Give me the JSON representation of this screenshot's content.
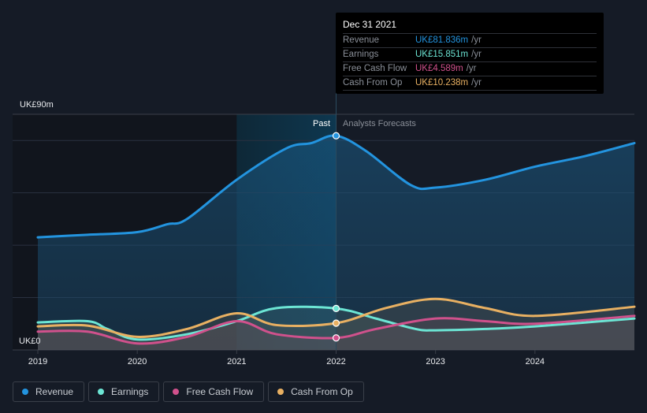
{
  "tooltip": {
    "date": "Dec 31 2021",
    "rows": [
      {
        "label": "Revenue",
        "value": "UK£81.836m",
        "unit": "/yr",
        "color": "#2394df"
      },
      {
        "label": "Earnings",
        "value": "UK£15.851m",
        "unit": "/yr",
        "color": "#6ce5d4"
      },
      {
        "label": "Free Cash Flow",
        "value": "UK£4.589m",
        "unit": "/yr",
        "color": "#d0518c"
      },
      {
        "label": "Cash From Op",
        "value": "UK£10.238m",
        "unit": "/yr",
        "color": "#e8b062"
      }
    ]
  },
  "legend": [
    {
      "label": "Revenue",
      "color": "#2394df"
    },
    {
      "label": "Earnings",
      "color": "#6ce5d4"
    },
    {
      "label": "Free Cash Flow",
      "color": "#d0518c"
    },
    {
      "label": "Cash From Op",
      "color": "#e8b062"
    }
  ],
  "chart_data": {
    "type": "line",
    "title": "",
    "xlabel": "",
    "ylabel": "",
    "y_top_label": "UK£90m",
    "y_bottom_label": "UK£0",
    "ylim": [
      0,
      90
    ],
    "xlim": [
      2019,
      2025
    ],
    "x_ticks": [
      "2019",
      "2020",
      "2021",
      "2022",
      "2023",
      "2024"
    ],
    "past_label": "Past",
    "forecast_label": "Analysts Forecasts",
    "divider_x": 2022,
    "highlight_start_x": 2021,
    "grid": true,
    "series": [
      {
        "name": "Revenue",
        "color": "#2394df",
        "x": [
          2019,
          2019.5,
          2020,
          2020.3,
          2020.5,
          2021,
          2021.5,
          2021.75,
          2022,
          2022.3,
          2022.75,
          2023,
          2023.5,
          2024,
          2024.5,
          2025
        ],
        "values": [
          43,
          44,
          45,
          48,
          50,
          65,
          77,
          79,
          81.8,
          76,
          63,
          62,
          65,
          70,
          74,
          79
        ]
      },
      {
        "name": "Earnings",
        "color": "#6ce5d4",
        "x": [
          2019,
          2019.5,
          2019.7,
          2020,
          2020.5,
          2021,
          2021.4,
          2022,
          2022.4,
          2022.8,
          2023,
          2023.5,
          2024,
          2025
        ],
        "values": [
          10.5,
          11,
          8,
          4,
          6,
          11,
          16,
          15.85,
          12,
          8,
          7.5,
          8,
          9,
          12
        ]
      },
      {
        "name": "Free Cash Flow",
        "color": "#d0518c",
        "x": [
          2019,
          2019.5,
          2020,
          2020.5,
          2021,
          2021.4,
          2022,
          2022.4,
          2023,
          2023.5,
          2024,
          2025
        ],
        "values": [
          7,
          7,
          2.5,
          5,
          11,
          6,
          4.6,
          8,
          12,
          11,
          10,
          13
        ]
      },
      {
        "name": "Cash From Op",
        "color": "#e8b062",
        "x": [
          2019,
          2019.5,
          2020,
          2020.5,
          2021,
          2021.4,
          2022,
          2022.5,
          2023,
          2023.5,
          2024,
          2025
        ],
        "values": [
          9,
          9.3,
          5,
          8,
          14,
          9.5,
          10.24,
          16,
          19.5,
          16,
          13,
          16.5
        ]
      }
    ]
  }
}
